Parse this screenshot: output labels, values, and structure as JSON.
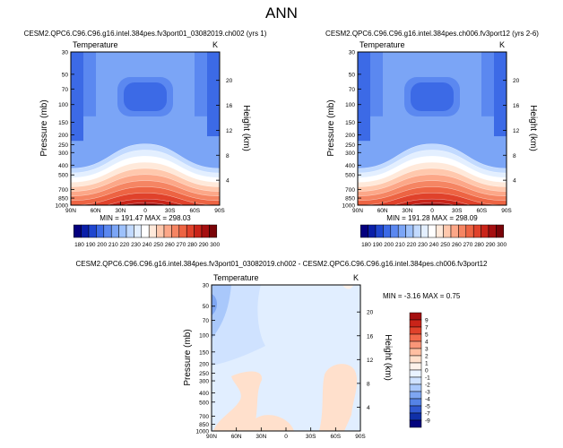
{
  "figure": {
    "title": "ANN",
    "colorbar_ticks": [
      "180",
      "190",
      "200",
      "210",
      "220",
      "230",
      "240",
      "250",
      "260",
      "270",
      "280",
      "290",
      "300"
    ],
    "colorbar_colors": [
      "#04007e",
      "#0a1fa8",
      "#1f46cf",
      "#3c6ae6",
      "#5b88f0",
      "#7ba5f6",
      "#9dc1fb",
      "#c2daff",
      "#e3efff",
      "#ffffff",
      "#ffe9da",
      "#ffc8ad",
      "#fca788",
      "#f58563",
      "#ed6443",
      "#e0422b",
      "#c92419",
      "#a50f10",
      "#7a0408"
    ],
    "diff_colorbar_ticks": [
      "9",
      "7",
      "5",
      "4",
      "3",
      "2",
      "1",
      "0",
      "-1",
      "-2",
      "-3",
      "-4",
      "-5",
      "-7",
      "-9"
    ],
    "diff_colorbar_colors": [
      "#a50f10",
      "#c92419",
      "#e0422b",
      "#f26a4c",
      "#fa9678",
      "#ffbfa2",
      "#ffe0cc",
      "#fdf2ea",
      "#eaf3ff",
      "#cfe2ff",
      "#a9c8fb",
      "#7ea6f2",
      "#5583e6",
      "#2f58d0",
      "#1030a8",
      "#04047e"
    ]
  },
  "panels": [
    {
      "id": "p1",
      "case": "CESM2.QPC6.C96.C96.g16.intel.384pes.fv3port01_03082019.ch002 (yrs 1)",
      "variable": "Temperature",
      "units": "K",
      "ylabel": "Pressure (mb)",
      "ylabel_right": "Height (km)",
      "stats": "MIN = 191.47   MAX = 298.03",
      "xticks": [
        "90N",
        "60N",
        "30N",
        "0",
        "30S",
        "60S",
        "90S"
      ],
      "yticks": [
        "30",
        "50",
        "70",
        "100",
        "150",
        "200",
        "250",
        "300",
        "400",
        "500",
        "700",
        "850",
        "1000"
      ],
      "height_ticks": [
        "20",
        "16",
        "12",
        "8",
        "4"
      ]
    },
    {
      "id": "p2",
      "case": "CESM2.QPC6.C96.C96.g16.intel.384pes.ch006.fv3port12 (yrs 2-6)",
      "variable": "Temperature",
      "units": "K",
      "ylabel": "Pressure (mb)",
      "ylabel_right": "Height (km)",
      "stats": "MIN = 191.28   MAX = 298.09",
      "xticks": [
        "90N",
        "60N",
        "30N",
        "0",
        "30S",
        "60S",
        "90S"
      ],
      "yticks": [
        "30",
        "50",
        "70",
        "100",
        "150",
        "200",
        "250",
        "300",
        "400",
        "500",
        "700",
        "850",
        "1000"
      ],
      "height_ticks": [
        "20",
        "16",
        "12",
        "8",
        "4"
      ]
    },
    {
      "id": "p3",
      "case": "CESM2.QPC6.C96.C96.g16.intel.384pes.fv3port01_03082019.ch002 - CESM2.QPC6.C96.C96.g16.intel.384pes.ch006.fv3port12",
      "variable": "Temperature",
      "units": "K",
      "ylabel": "Pressure (mb)",
      "ylabel_right": "Height (km)",
      "stats": "MIN =  -3.16   MAX =   0.75",
      "xticks": [
        "90N",
        "60N",
        "30N",
        "0",
        "30S",
        "60S",
        "90S"
      ],
      "yticks": [
        "30",
        "50",
        "70",
        "100",
        "150",
        "200",
        "250",
        "300",
        "400",
        "500",
        "700",
        "850",
        "1000"
      ],
      "height_ticks": [
        "20",
        "16",
        "12",
        "8",
        "4"
      ]
    }
  ],
  "chart_data": [
    {
      "type": "heatmap",
      "title": "CESM2.QPC6.C96.C96.g16.intel.384pes.fv3port01_03082019.ch002 (yrs 1)",
      "variable": "Temperature",
      "units": "K",
      "xlabel": "",
      "ylabel": "Pressure (mb)",
      "ylabel_right": "Height (km)",
      "x": [
        -90,
        -75,
        -60,
        -45,
        -30,
        -15,
        0,
        15,
        30,
        45,
        60,
        75,
        90
      ],
      "x_ticklabels": [
        "90N",
        "60N",
        "30N",
        "0",
        "30S",
        "60S",
        "90S"
      ],
      "y_log_pressure": true,
      "ylim": [
        1000,
        30
      ],
      "y": [
        30,
        50,
        70,
        100,
        150,
        200,
        250,
        300,
        400,
        500,
        700,
        850,
        1000
      ],
      "height_km": [
        20,
        16,
        12,
        8,
        4
      ],
      "z_range": [
        191.47,
        298.03
      ],
      "colorbar_levels": [
        180,
        190,
        200,
        210,
        220,
        230,
        240,
        250,
        260,
        270,
        280,
        290,
        300
      ]
    },
    {
      "type": "heatmap",
      "title": "CESM2.QPC6.C96.C96.g16.intel.384pes.ch006.fv3port12 (yrs 2-6)",
      "variable": "Temperature",
      "units": "K",
      "xlabel": "",
      "ylabel": "Pressure (mb)",
      "ylabel_right": "Height (km)",
      "x": [
        -90,
        -75,
        -60,
        -45,
        -30,
        -15,
        0,
        15,
        30,
        45,
        60,
        75,
        90
      ],
      "x_ticklabels": [
        "90N",
        "60N",
        "30N",
        "0",
        "30S",
        "60S",
        "90S"
      ],
      "y_log_pressure": true,
      "ylim": [
        1000,
        30
      ],
      "y": [
        30,
        50,
        70,
        100,
        150,
        200,
        250,
        300,
        400,
        500,
        700,
        850,
        1000
      ],
      "height_km": [
        20,
        16,
        12,
        8,
        4
      ],
      "z_range": [
        191.28,
        298.09
      ],
      "colorbar_levels": [
        180,
        190,
        200,
        210,
        220,
        230,
        240,
        250,
        260,
        270,
        280,
        290,
        300
      ]
    },
    {
      "type": "heatmap",
      "title": "CESM2.QPC6.C96.C96.g16.intel.384pes.fv3port01_03082019.ch002 - CESM2.QPC6.C96.C96.g16.intel.384pes.ch006.fv3port12",
      "variable": "Temperature",
      "units": "K",
      "xlabel": "",
      "ylabel": "Pressure (mb)",
      "ylabel_right": "Height (km)",
      "x": [
        -90,
        -75,
        -60,
        -45,
        -30,
        -15,
        0,
        15,
        30,
        45,
        60,
        75,
        90
      ],
      "x_ticklabels": [
        "90N",
        "60N",
        "30N",
        "0",
        "30S",
        "60S",
        "90S"
      ],
      "y_log_pressure": true,
      "ylim": [
        1000,
        30
      ],
      "y": [
        30,
        50,
        70,
        100,
        150,
        200,
        250,
        300,
        400,
        500,
        700,
        850,
        1000
      ],
      "height_km": [
        20,
        16,
        12,
        8,
        4
      ],
      "z_range": [
        -3.16,
        0.75
      ],
      "colorbar_levels": [
        -9,
        -7,
        -5,
        -4,
        -3,
        -2,
        -1,
        0,
        1,
        2,
        3,
        4,
        5,
        7,
        9
      ]
    }
  ]
}
